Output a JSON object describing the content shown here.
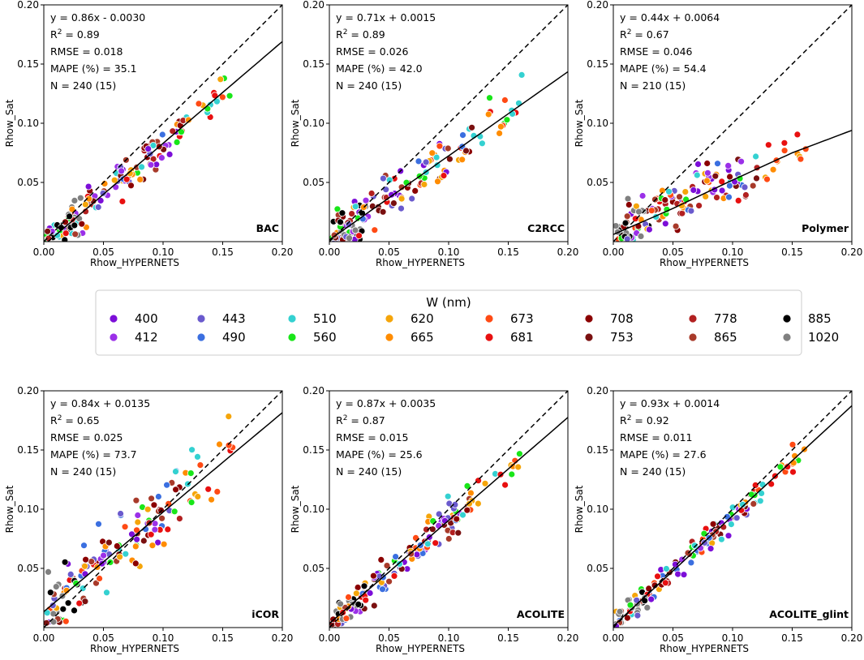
{
  "legend": {
    "title": "W (nm)",
    "items": [
      {
        "label": "400",
        "color": "#7c0ed8"
      },
      {
        "label": "412",
        "color": "#9b30e8"
      },
      {
        "label": "443",
        "color": "#6a5acd"
      },
      {
        "label": "490",
        "color": "#3b6fe0"
      },
      {
        "label": "510",
        "color": "#34d1d1"
      },
      {
        "label": "560",
        "color": "#19e619"
      },
      {
        "label": "620",
        "color": "#f5a50a"
      },
      {
        "label": "665",
        "color": "#ff8c00"
      },
      {
        "label": "673",
        "color": "#ff4a14"
      },
      {
        "label": "681",
        "color": "#e81010"
      },
      {
        "label": "708",
        "color": "#8b0000"
      },
      {
        "label": "753",
        "color": "#7a1010"
      },
      {
        "label": "778",
        "color": "#b22020"
      },
      {
        "label": "865",
        "color": "#a83a2a"
      },
      {
        "label": "885",
        "color": "#000000"
      },
      {
        "label": "1020",
        "color": "#808080"
      }
    ]
  },
  "chart_data": [
    {
      "type": "scatter",
      "title": "BAC",
      "xlabel": "Rhow_HYPERNETS",
      "ylabel": "Rhow_Sat",
      "xlim": [
        0,
        0.2
      ],
      "ylim": [
        0,
        0.2
      ],
      "xticks": [
        "0.00",
        "0.05",
        "0.10",
        "0.15",
        "0.20"
      ],
      "yticks": [
        "0.05",
        "0.10",
        "0.15",
        "0.20"
      ],
      "stats": [
        "y = 0.86x - 0.0030",
        "R² = 0.89",
        "RMSE = 0.018",
        "MAPE (%) = 35.1",
        "N  = 240 (15)"
      ],
      "fit": {
        "type": "linear",
        "slope": 0.86,
        "intercept": -0.003
      },
      "spread": 0.015
    },
    {
      "type": "scatter",
      "title": "C2RCC",
      "xlabel": "Rhow_HYPERNETS",
      "ylabel": "Rhow_Sat",
      "xlim": [
        0,
        0.2
      ],
      "ylim": [
        0,
        0.2
      ],
      "xticks": [
        "0.00",
        "0.05",
        "0.10",
        "0.15",
        "0.20"
      ],
      "yticks": [
        "0.05",
        "0.10",
        "0.15",
        "0.20"
      ],
      "stats": [
        "y = 0.71x + 0.0015",
        "R² = 0.89",
        "RMSE = 0.026",
        "MAPE (%) = 42.0",
        "N  = 240 (15)"
      ],
      "fit": {
        "type": "linear",
        "slope": 0.71,
        "intercept": 0.0015
      },
      "spread": 0.02
    },
    {
      "type": "scatter",
      "title": "Polymer",
      "xlabel": "Rhow_HYPERNETS",
      "ylabel": "Rhow_Sat",
      "xlim": [
        0,
        0.2
      ],
      "ylim": [
        0,
        0.2
      ],
      "xticks": [
        "0.00",
        "0.05",
        "0.10",
        "0.15",
        "0.20"
      ],
      "yticks": [
        "0.05",
        "0.10",
        "0.15",
        "0.20"
      ],
      "stats": [
        "y = 0.44x + 0.0064",
        "R² = 0.67",
        "RMSE = 0.046",
        "MAPE (%) = 54.4",
        "N  = 210 (15)"
      ],
      "fit": {
        "type": "curve",
        "points": [
          [
            0,
            0.006
          ],
          [
            0.05,
            0.028
          ],
          [
            0.1,
            0.052
          ],
          [
            0.15,
            0.075
          ],
          [
            0.2,
            0.094
          ]
        ]
      },
      "spread": 0.02
    },
    {
      "type": "scatter",
      "title": "iCOR",
      "xlabel": "Rhow_HYPERNETS",
      "ylabel": "Rhow_Sat",
      "xlim": [
        0,
        0.2
      ],
      "ylim": [
        0,
        0.2
      ],
      "xticks": [
        "0.00",
        "0.05",
        "0.10",
        "0.15",
        "0.20"
      ],
      "yticks": [
        "0.05",
        "0.10",
        "0.15",
        "0.20"
      ],
      "stats": [
        "y = 0.84x + 0.0135",
        "R² = 0.65",
        "RMSE = 0.025",
        "MAPE (%) = 73.7",
        "N  = 240 (15)"
      ],
      "fit": {
        "type": "linear",
        "slope": 0.84,
        "intercept": 0.0135
      },
      "spread": 0.028
    },
    {
      "type": "scatter",
      "title": "ACOLITE",
      "xlabel": "Rhow_HYPERNETS",
      "ylabel": "Rhow_Sat",
      "xlim": [
        0,
        0.2
      ],
      "ylim": [
        0,
        0.2
      ],
      "xticks": [
        "0.00",
        "0.05",
        "0.10",
        "0.15",
        "0.20"
      ],
      "yticks": [
        "0.05",
        "0.10",
        "0.15",
        "0.20"
      ],
      "stats": [
        "y = 0.87x + 0.0035",
        "R² = 0.87",
        "RMSE = 0.015",
        "MAPE (%) = 25.6",
        "N  = 240 (15)"
      ],
      "fit": {
        "type": "linear",
        "slope": 0.87,
        "intercept": 0.0035
      },
      "spread": 0.014
    },
    {
      "type": "scatter",
      "title": "ACOLITE_glint",
      "xlabel": "Rhow_HYPERNETS",
      "ylabel": "Rhow_Sat",
      "xlim": [
        0,
        0.2
      ],
      "ylim": [
        0,
        0.2
      ],
      "xticks": [
        "0.00",
        "0.05",
        "0.10",
        "0.15",
        "0.20"
      ],
      "yticks": [
        "0.05",
        "0.10",
        "0.15",
        "0.20"
      ],
      "stats": [
        "y = 0.93x + 0.0014",
        "R² = 0.92",
        "RMSE = 0.011",
        "MAPE (%) = 27.6",
        "N  = 240 (15)"
      ],
      "fit": {
        "type": "linear",
        "slope": 0.93,
        "intercept": 0.0014
      },
      "spread": 0.011
    }
  ]
}
